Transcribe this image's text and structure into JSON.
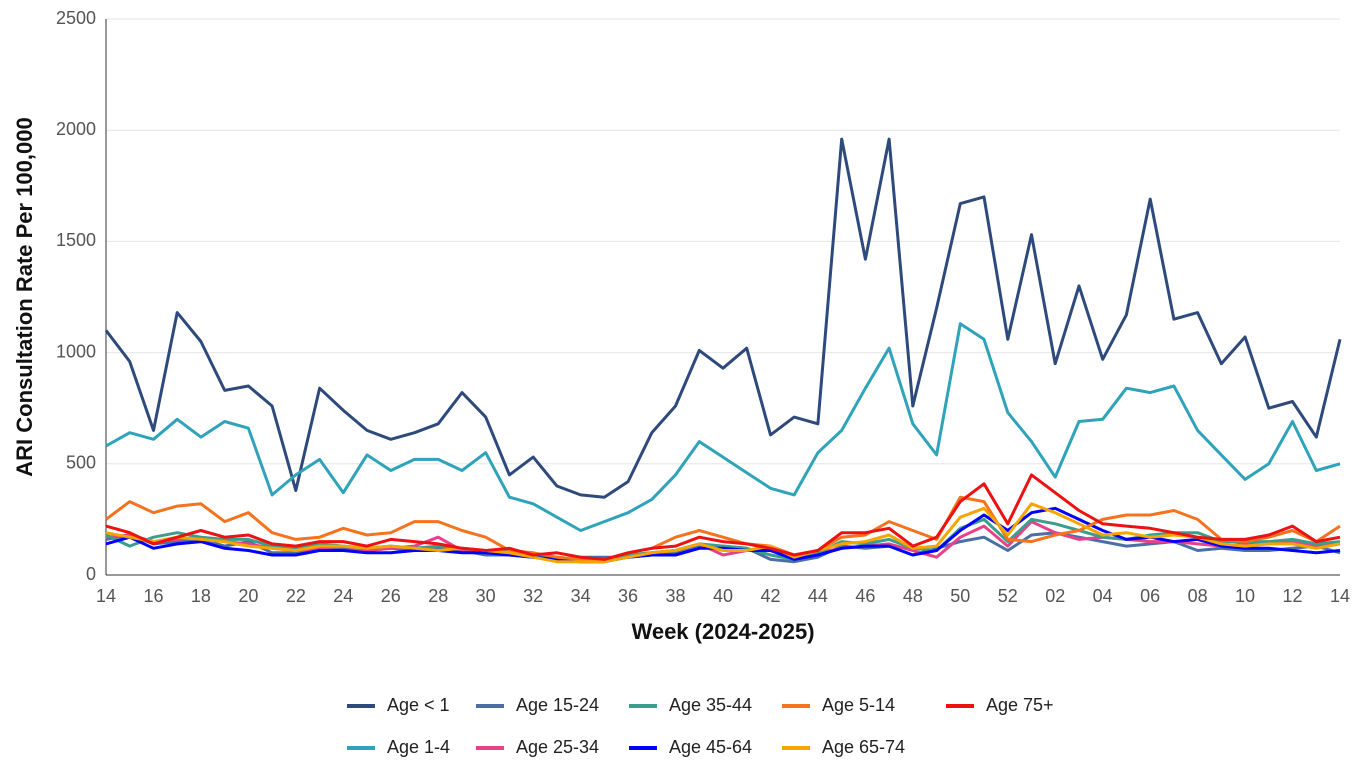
{
  "chart_data": {
    "type": "line",
    "x_label": "Week (2024-2025)",
    "y_label": "ARI Consultation Rate Per 100,000",
    "categories": [
      "14",
      null,
      "16",
      null,
      "18",
      null,
      "20",
      null,
      "22",
      null,
      "24",
      null,
      "26",
      null,
      "28",
      null,
      "30",
      null,
      "32",
      null,
      "34",
      null,
      "36",
      null,
      "38",
      null,
      "40",
      null,
      "42",
      null,
      "44",
      null,
      "46",
      null,
      "48",
      null,
      "50",
      null,
      "52",
      null,
      "02",
      null,
      "04",
      null,
      "06",
      null,
      "08",
      null,
      "10",
      null,
      "12",
      null,
      "14"
    ],
    "ylim": [
      0,
      2500
    ],
    "yticks": [
      0,
      500,
      1000,
      1500,
      2000,
      2500
    ],
    "grid": true,
    "legend": "bottom",
    "series": [
      {
        "name": "Age < 1",
        "color": "#2e4a7d",
        "values": [
          1100,
          960,
          650,
          1180,
          1050,
          830,
          850,
          760,
          380,
          840,
          740,
          650,
          610,
          640,
          680,
          820,
          710,
          450,
          530,
          400,
          360,
          350,
          420,
          640,
          760,
          1010,
          930,
          1020,
          630,
          710,
          680,
          1960,
          1420,
          1960,
          760,
          1200,
          1670,
          1700,
          1060,
          1530,
          950,
          1300,
          970,
          1170,
          1690,
          1150,
          1180,
          950,
          1070,
          750,
          780,
          620,
          1060
        ]
      },
      {
        "name": "Age 1-4",
        "color": "#2ea3b9",
        "values": [
          580,
          640,
          610,
          700,
          620,
          690,
          660,
          360,
          450,
          520,
          370,
          540,
          470,
          520,
          520,
          470,
          550,
          350,
          320,
          260,
          200,
          240,
          280,
          340,
          450,
          600,
          530,
          460,
          390,
          360,
          550,
          650,
          840,
          1020,
          680,
          540,
          1130,
          1060,
          730,
          600,
          440,
          690,
          700,
          840,
          820,
          850,
          650,
          540,
          430,
          500,
          690,
          470,
          500
        ]
      },
      {
        "name": "Age 15-24",
        "color": "#4a6fa5",
        "values": [
          160,
          180,
          140,
          150,
          160,
          130,
          150,
          100,
          100,
          120,
          120,
          110,
          120,
          110,
          120,
          110,
          90,
          90,
          80,
          70,
          80,
          80,
          80,
          90,
          100,
          130,
          130,
          120,
          70,
          60,
          80,
          130,
          120,
          130,
          90,
          120,
          150,
          170,
          110,
          180,
          190,
          170,
          150,
          130,
          140,
          150,
          110,
          120,
          110,
          110,
          120,
          130,
          100
        ]
      },
      {
        "name": "Age 25-34",
        "color": "#e8418c",
        "values": [
          170,
          180,
          150,
          160,
          170,
          150,
          140,
          120,
          110,
          120,
          130,
          110,
          120,
          130,
          170,
          110,
          110,
          110,
          90,
          70,
          70,
          70,
          90,
          100,
          110,
          140,
          90,
          110,
          110,
          80,
          100,
          120,
          130,
          140,
          110,
          80,
          170,
          220,
          130,
          240,
          190,
          160,
          170,
          160,
          150,
          150,
          140,
          130,
          140,
          140,
          150,
          130,
          140
        ]
      },
      {
        "name": "Age 35-44",
        "color": "#3a9e8d",
        "values": [
          180,
          130,
          170,
          190,
          170,
          160,
          160,
          130,
          120,
          140,
          130,
          120,
          130,
          120,
          130,
          120,
          110,
          110,
          90,
          80,
          70,
          70,
          90,
          100,
          110,
          140,
          130,
          120,
          90,
          70,
          100,
          150,
          140,
          160,
          120,
          110,
          210,
          250,
          150,
          250,
          230,
          200,
          170,
          160,
          180,
          190,
          190,
          150,
          150,
          150,
          160,
          140,
          150
        ]
      },
      {
        "name": "Age 45-64",
        "color": "#0000ff",
        "values": [
          140,
          170,
          120,
          140,
          150,
          120,
          110,
          90,
          90,
          110,
          110,
          100,
          100,
          110,
          110,
          100,
          100,
          90,
          80,
          70,
          60,
          60,
          80,
          90,
          90,
          120,
          120,
          110,
          110,
          70,
          90,
          120,
          130,
          130,
          90,
          110,
          200,
          270,
          200,
          280,
          300,
          250,
          200,
          160,
          170,
          150,
          160,
          130,
          120,
          120,
          110,
          100,
          110
        ]
      },
      {
        "name": "Age 5-14",
        "color": "#f5731e",
        "values": [
          250,
          330,
          280,
          310,
          320,
          240,
          280,
          190,
          160,
          170,
          210,
          180,
          190,
          240,
          240,
          200,
          170,
          110,
          100,
          80,
          70,
          70,
          100,
          120,
          170,
          200,
          170,
          140,
          130,
          90,
          110,
          170,
          180,
          240,
          200,
          160,
          350,
          330,
          160,
          150,
          180,
          200,
          250,
          270,
          270,
          290,
          250,
          160,
          150,
          170,
          200,
          150,
          220
        ]
      },
      {
        "name": "Age 65-74",
        "color": "#f5a500",
        "values": [
          190,
          170,
          150,
          170,
          160,
          150,
          130,
          120,
          110,
          130,
          130,
          120,
          130,
          120,
          110,
          120,
          110,
          100,
          80,
          60,
          60,
          60,
          80,
          100,
          110,
          140,
          110,
          110,
          130,
          80,
          110,
          140,
          150,
          180,
          120,
          130,
          260,
          300,
          180,
          320,
          280,
          230,
          180,
          190,
          170,
          180,
          170,
          140,
          130,
          140,
          140,
          120,
          140
        ]
      },
      {
        "name": "Age 75+",
        "color": "#ee1111",
        "values": [
          220,
          190,
          140,
          170,
          200,
          170,
          180,
          140,
          130,
          150,
          150,
          130,
          160,
          150,
          140,
          120,
          110,
          120,
          90,
          100,
          80,
          70,
          100,
          120,
          130,
          170,
          150,
          140,
          120,
          90,
          110,
          190,
          190,
          210,
          130,
          170,
          330,
          410,
          230,
          450,
          370,
          290,
          230,
          220,
          210,
          190,
          170,
          160,
          160,
          180,
          220,
          150,
          170
        ]
      }
    ]
  }
}
